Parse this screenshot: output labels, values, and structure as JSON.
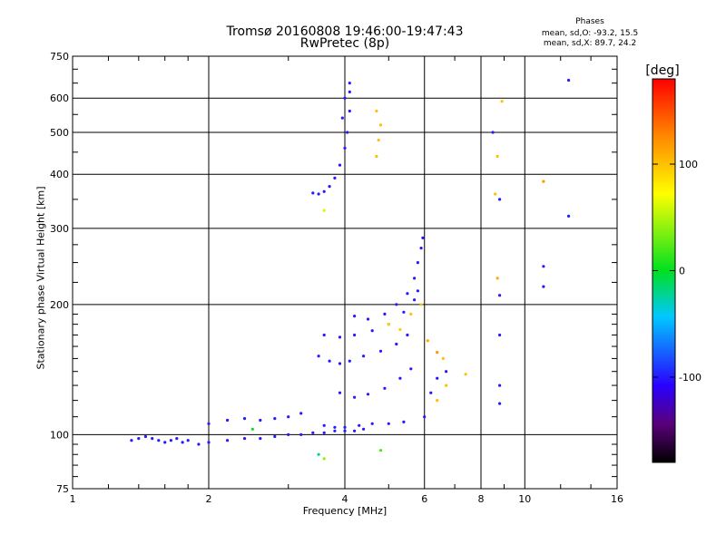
{
  "chart_data": {
    "type": "scatter",
    "title": "Tromsø 20160808 19:46:00-19:47:43",
    "subtitle": "RwPretec (8p)",
    "xlabel": "Frequency [MHz]",
    "ylabel": "Stationary phase Virtual Height [km]",
    "x_scale": "log",
    "y_scale": "log",
    "xlim": [
      1,
      16
    ],
    "ylim": [
      75,
      750
    ],
    "xticks": [
      1,
      2,
      4,
      6,
      8,
      10,
      16
    ],
    "yticks": [
      75,
      100,
      200,
      300,
      400,
      500,
      600,
      750
    ],
    "grid": true,
    "annotations": {
      "heading": "Phases",
      "line1": "mean, sd,O: -93.2, 15.5",
      "line2": "mean, sd,X: 89.7, 24.2"
    },
    "colorbar": {
      "label": "[deg]",
      "ticks": [
        -100,
        0,
        100
      ],
      "range": [
        -180,
        180
      ]
    },
    "series": [
      {
        "points": [
          [
            1.35,
            97,
            -100
          ],
          [
            1.4,
            98,
            -100
          ],
          [
            1.45,
            99,
            -100
          ],
          [
            1.5,
            98,
            -100
          ],
          [
            1.55,
            97,
            -100
          ],
          [
            1.6,
            96,
            -100
          ],
          [
            1.65,
            97,
            -100
          ],
          [
            1.7,
            98,
            -100
          ],
          [
            1.75,
            96,
            -100
          ],
          [
            1.8,
            97,
            -100
          ],
          [
            1.9,
            95,
            -100
          ],
          [
            2.0,
            96,
            -100
          ],
          [
            2.2,
            97,
            -100
          ],
          [
            2.4,
            98,
            -100
          ],
          [
            2.6,
            98,
            -100
          ],
          [
            2.8,
            99,
            -100
          ],
          [
            3.0,
            100,
            -100
          ],
          [
            3.2,
            100,
            -100
          ],
          [
            3.4,
            101,
            -100
          ],
          [
            3.6,
            101,
            -100
          ],
          [
            3.8,
            102,
            -100
          ],
          [
            4.0,
            102,
            -100
          ],
          [
            4.2,
            102,
            -100
          ],
          [
            4.4,
            103,
            -100
          ],
          [
            2.0,
            106,
            -100
          ],
          [
            2.2,
            108,
            -100
          ],
          [
            2.4,
            109,
            -100
          ],
          [
            2.6,
            108,
            -100
          ],
          [
            2.8,
            109,
            -100
          ],
          [
            3.0,
            110,
            -100
          ],
          [
            3.2,
            112,
            -100
          ],
          [
            3.6,
            105,
            -100
          ],
          [
            3.8,
            104,
            -100
          ],
          [
            4.0,
            104,
            -100
          ],
          [
            4.3,
            105,
            -100
          ],
          [
            4.6,
            106,
            -100
          ],
          [
            5.0,
            106,
            -100
          ],
          [
            5.4,
            107,
            -100
          ],
          [
            3.5,
            152,
            -100
          ],
          [
            3.7,
            148,
            -100
          ],
          [
            3.9,
            146,
            -100
          ],
          [
            4.1,
            148,
            -100
          ],
          [
            4.4,
            152,
            -100
          ],
          [
            4.8,
            156,
            -100
          ],
          [
            5.2,
            162,
            -100
          ],
          [
            5.5,
            170,
            -100
          ],
          [
            3.6,
            170,
            -100
          ],
          [
            3.9,
            168,
            -100
          ],
          [
            4.2,
            170,
            -100
          ],
          [
            4.6,
            174,
            -100
          ],
          [
            5.0,
            180,
            -100
          ],
          [
            5.4,
            192,
            -100
          ],
          [
            5.7,
            205,
            -100
          ],
          [
            5.8,
            215,
            -100
          ],
          [
            4.2,
            188,
            -100
          ],
          [
            4.5,
            185,
            -100
          ],
          [
            4.9,
            190,
            -100
          ],
          [
            5.2,
            200,
            -100
          ],
          [
            5.5,
            212,
            -100
          ],
          [
            5.7,
            230,
            -100
          ],
          [
            5.8,
            250,
            -100
          ],
          [
            5.9,
            270,
            -100
          ],
          [
            5.95,
            285,
            -100
          ],
          [
            3.9,
            125,
            -100
          ],
          [
            4.2,
            122,
            -100
          ],
          [
            4.5,
            124,
            -100
          ],
          [
            4.9,
            128,
            -100
          ],
          [
            5.3,
            135,
            -100
          ],
          [
            5.6,
            142,
            -100
          ],
          [
            3.4,
            362,
            -100
          ],
          [
            3.5,
            360,
            -100
          ],
          [
            3.6,
            365,
            -100
          ],
          [
            3.7,
            375,
            -100
          ],
          [
            3.8,
            392,
            -100
          ],
          [
            3.9,
            420,
            -100
          ],
          [
            4.0,
            460,
            -100
          ],
          [
            4.05,
            500,
            -100
          ],
          [
            4.1,
            560,
            -100
          ],
          [
            4.1,
            620,
            -100
          ],
          [
            4.1,
            650,
            -100
          ],
          [
            4.0,
            600,
            -100
          ],
          [
            3.95,
            540,
            -100
          ],
          [
            4.7,
            560,
            100
          ],
          [
            4.8,
            520,
            100
          ],
          [
            4.75,
            480,
            100
          ],
          [
            4.7,
            440,
            100
          ],
          [
            5.0,
            180,
            90
          ],
          [
            5.3,
            175,
            95
          ],
          [
            5.6,
            190,
            100
          ],
          [
            5.9,
            200,
            100
          ],
          [
            6.1,
            165,
            110
          ],
          [
            6.4,
            155,
            120
          ],
          [
            6.6,
            150,
            100
          ],
          [
            7.4,
            138,
            100
          ],
          [
            6.4,
            120,
            100
          ],
          [
            6.7,
            130,
            100
          ],
          [
            6.7,
            140,
            -100
          ],
          [
            6.4,
            135,
            -100
          ],
          [
            6.2,
            125,
            -100
          ],
          [
            6.0,
            110,
            -100
          ],
          [
            8.6,
            360,
            100
          ],
          [
            8.7,
            230,
            110
          ],
          [
            8.7,
            440,
            100
          ],
          [
            8.9,
            590,
            100
          ],
          [
            8.8,
            118,
            -100
          ],
          [
            8.8,
            130,
            -100
          ],
          [
            8.8,
            170,
            -100
          ],
          [
            8.8,
            210,
            -100
          ],
          [
            8.8,
            350,
            -100
          ],
          [
            8.5,
            500,
            -100
          ],
          [
            11.0,
            245,
            -100
          ],
          [
            11.0,
            220,
            -100
          ],
          [
            11.0,
            385,
            120
          ],
          [
            12.5,
            320,
            -100
          ],
          [
            12.5,
            660,
            -100
          ],
          [
            2.5,
            103,
            0
          ],
          [
            3.5,
            90,
            -20
          ],
          [
            3.6,
            88,
            40
          ],
          [
            4.8,
            92,
            20
          ],
          [
            3.6,
            330,
            60
          ]
        ]
      }
    ]
  }
}
